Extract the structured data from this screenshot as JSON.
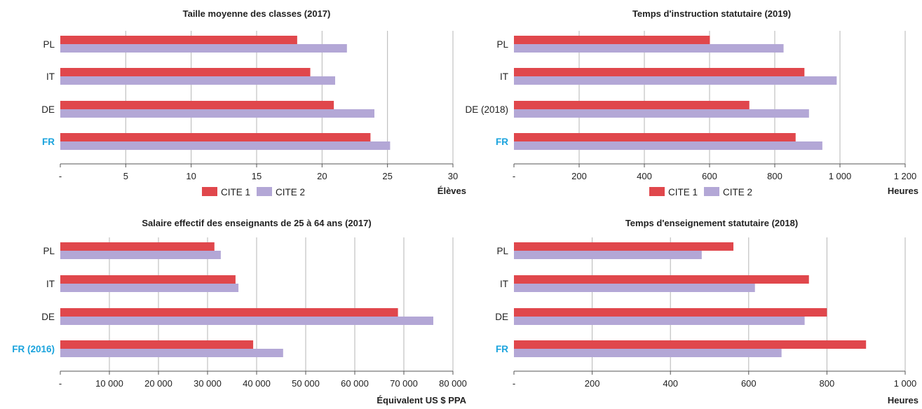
{
  "colors": {
    "cite1": "#e0474c",
    "cite2": "#b3a7d6",
    "highlight": "#1aa3dd"
  },
  "legend": {
    "cite1": "CITE 1",
    "cite2": "CITE 2"
  },
  "chart_data": [
    {
      "type": "bar",
      "orientation": "horizontal",
      "title": "Taille moyenne des classes (2017)",
      "xlabel": "Élèves",
      "categories": [
        "PL",
        "IT",
        "DE",
        "FR"
      ],
      "highlight_category": "FR",
      "xlim": [
        0,
        30
      ],
      "ticks": [
        0,
        5,
        10,
        15,
        20,
        25,
        30
      ],
      "tick_labels": [
        "-",
        "5",
        "10",
        "15",
        "20",
        "25",
        "30"
      ],
      "grid": true,
      "legend_position": "bottom",
      "series": [
        {
          "name": "CITE 1",
          "values": [
            18.1,
            19.1,
            20.9,
            23.7
          ]
        },
        {
          "name": "CITE 2",
          "values": [
            21.9,
            21.0,
            24.0,
            25.2
          ]
        }
      ]
    },
    {
      "type": "bar",
      "orientation": "horizontal",
      "title": "Temps d'instruction statutaire (2019)",
      "xlabel": "Heures",
      "categories": [
        "PL",
        "IT",
        "DE (2018)",
        "FR"
      ],
      "highlight_category": "FR",
      "xlim": [
        0,
        1200
      ],
      "ticks": [
        0,
        200,
        400,
        600,
        800,
        1000,
        1200
      ],
      "tick_labels": [
        "-",
        "200",
        "400",
        "600",
        "800",
        "1 000",
        "1 200"
      ],
      "grid": true,
      "legend_position": "bottom",
      "series": [
        {
          "name": "CITE 1",
          "values": [
            601,
            891,
            722,
            864
          ]
        },
        {
          "name": "CITE 2",
          "values": [
            827,
            990,
            905,
            946
          ]
        }
      ]
    },
    {
      "type": "bar",
      "orientation": "horizontal",
      "title": "Salaire effectif des enseignants de 25 à 64 ans (2017)",
      "xlabel": "Équivalent US $ PPA",
      "categories": [
        "PL",
        "IT",
        "DE",
        "FR (2016)"
      ],
      "highlight_category": "FR (2016)",
      "xlim": [
        0,
        80000
      ],
      "ticks": [
        0,
        10000,
        20000,
        30000,
        40000,
        50000,
        60000,
        70000,
        80000
      ],
      "tick_labels": [
        "-",
        "10 000",
        "20 000",
        "30 000",
        "40 000",
        "50 000",
        "60 000",
        "70 000",
        "80 000"
      ],
      "grid": true,
      "series": [
        {
          "name": "CITE 1",
          "values": [
            31400,
            35700,
            68800,
            39300
          ]
        },
        {
          "name": "CITE 2",
          "values": [
            32700,
            36300,
            76000,
            45400
          ]
        }
      ]
    },
    {
      "type": "bar",
      "orientation": "horizontal",
      "title": "Temps d'enseignement statutaire (2018)",
      "xlabel": "Heures",
      "categories": [
        "PL",
        "IT",
        "DE",
        "FR"
      ],
      "highlight_category": "FR",
      "xlim": [
        0,
        1000
      ],
      "ticks": [
        0,
        200,
        400,
        600,
        800,
        1000
      ],
      "tick_labels": [
        "-",
        "200",
        "400",
        "600",
        "800",
        "1 000"
      ],
      "grid": true,
      "series": [
        {
          "name": "CITE 1",
          "values": [
            561,
            754,
            800,
            900
          ]
        },
        {
          "name": "CITE 2",
          "values": [
            480,
            616,
            743,
            684
          ]
        }
      ]
    }
  ]
}
